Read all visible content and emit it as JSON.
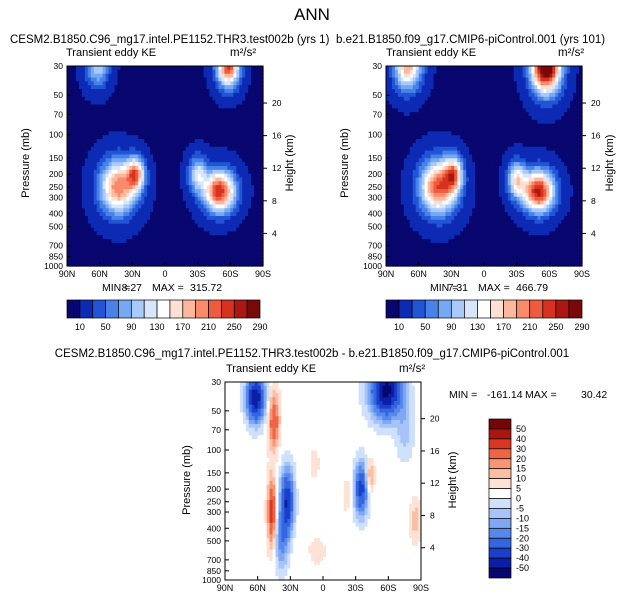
{
  "figure_title": "ANN",
  "colors": {
    "seq": [
      "#08076f",
      "#0c2ab3",
      "#2155d6",
      "#4782e8",
      "#76a8f3",
      "#a8c9fa",
      "#d6e6fd",
      "#ffffff",
      "#fde0d3",
      "#fcb79d",
      "#f98b69",
      "#ef5b3e",
      "#d6321f",
      "#ab1712",
      "#7a0809"
    ],
    "div": [
      "#08076f",
      "#0b1fa6",
      "#1a3fcc",
      "#3566e0",
      "#5788ed",
      "#7ea7f4",
      "#a6c4f9",
      "#cfe0fc",
      "#ffffff",
      "#fde2d5",
      "#fbbfa6",
      "#f89575",
      "#ee6445",
      "#d83821",
      "#ab1510",
      "#760505"
    ]
  },
  "chart_data": [
    {
      "type": "heatmap",
      "id": "p1",
      "title": "CESM2.B1850.C96_mg17.intel.PE1152.THR3.test002b (yrs 1)",
      "subtitle": "Transient eddy KE",
      "units": "m²/s²",
      "ylabel": "Pressure (mb)",
      "ylabel_right": "Height (km)",
      "x_ticks": [
        "90N",
        "60N",
        "30N",
        "0",
        "30S",
        "60S",
        "90S"
      ],
      "x_range": [
        90,
        -90
      ],
      "y_ticks": [
        30,
        50,
        70,
        100,
        150,
        200,
        250,
        300,
        400,
        500,
        700,
        850,
        1000
      ],
      "y_range": [
        1000,
        30
      ],
      "height_ticks": [
        4,
        8,
        12,
        16,
        20
      ],
      "min_label": "MIN =",
      "min_value": "8.27",
      "max_label": "MAX =",
      "max_value": "315.72",
      "colorbar": {
        "orientation": "horizontal",
        "levels": [
          10,
          30,
          50,
          70,
          90,
          110,
          130,
          150,
          170,
          190,
          210,
          230,
          250,
          270,
          290
        ],
        "labels": [
          "10",
          "50",
          "90",
          "130",
          "170",
          "210",
          "250",
          "290"
        ]
      },
      "blobs": [
        {
          "lat": 43,
          "p": 250,
          "amp": 200,
          "slat": 16,
          "sp": 0.45
        },
        {
          "lat": 27,
          "p": 200,
          "amp": 170,
          "slat": 8,
          "sp": 0.28
        },
        {
          "lat": -50,
          "p": 270,
          "amp": 240,
          "slat": 14,
          "sp": 0.35
        },
        {
          "lat": -30,
          "p": 200,
          "amp": 110,
          "slat": 8,
          "sp": 0.3
        },
        {
          "lat": -58,
          "p": 30,
          "amp": 230,
          "slat": 10,
          "sp": 0.35
        },
        {
          "lat": 62,
          "p": 30,
          "amp": 100,
          "slat": 10,
          "sp": 0.35
        }
      ]
    },
    {
      "type": "heatmap",
      "id": "p2",
      "title": "b.e21.B1850.f09_g17.CMIP6-piControl.001 (yrs 101)",
      "subtitle": "Transient eddy KE",
      "units": "m²/s²",
      "ylabel": "Pressure (mb)",
      "ylabel_right": "Height (km)",
      "x_ticks": [
        "90N",
        "60N",
        "30N",
        "0",
        "30S",
        "60S",
        "90S"
      ],
      "x_range": [
        90,
        -90
      ],
      "y_ticks": [
        30,
        50,
        70,
        100,
        150,
        200,
        250,
        300,
        400,
        500,
        700,
        850,
        1000
      ],
      "y_range": [
        1000,
        30
      ],
      "height_ticks": [
        4,
        8,
        12,
        16,
        20
      ],
      "min_label": "MIN =",
      "min_value": "7.31",
      "max_label": "MAX =",
      "max_value": "466.79",
      "colorbar": {
        "orientation": "horizontal",
        "levels": [
          10,
          30,
          50,
          70,
          90,
          110,
          130,
          150,
          170,
          190,
          210,
          230,
          250,
          270,
          290
        ],
        "labels": [
          "10",
          "50",
          "90",
          "130",
          "170",
          "210",
          "250",
          "290"
        ]
      },
      "blobs": [
        {
          "lat": 42,
          "p": 250,
          "amp": 220,
          "slat": 16,
          "sp": 0.45
        },
        {
          "lat": 28,
          "p": 200,
          "amp": 160,
          "slat": 8,
          "sp": 0.3
        },
        {
          "lat": -50,
          "p": 270,
          "amp": 250,
          "slat": 14,
          "sp": 0.35
        },
        {
          "lat": -30,
          "p": 220,
          "amp": 140,
          "slat": 8,
          "sp": 0.3
        },
        {
          "lat": -57,
          "p": 30,
          "amp": 320,
          "slat": 13,
          "sp": 0.45
        },
        {
          "lat": 70,
          "p": 30,
          "amp": 180,
          "slat": 12,
          "sp": 0.4
        }
      ]
    },
    {
      "type": "heatmap",
      "id": "p3",
      "title": "CESM2.B1850.C96_mg17.intel.PE1152.THR3.test002b - b.e21.B1850.f09_g17.CMIP6-piControl.001",
      "subtitle": "Transient eddy KE",
      "units": "m²/s²",
      "ylabel": "Pressure (mb)",
      "ylabel_right": "Height (km)",
      "x_ticks": [
        "90N",
        "60N",
        "30N",
        "0",
        "30S",
        "60S",
        "90S"
      ],
      "x_range": [
        90,
        -90
      ],
      "y_ticks": [
        30,
        50,
        70,
        100,
        150,
        200,
        250,
        300,
        400,
        500,
        700,
        850,
        1000
      ],
      "y_range": [
        1000,
        30
      ],
      "height_ticks": [
        4,
        8,
        12,
        16,
        20
      ],
      "min_label": "MIN =",
      "min_value": "-161.14",
      "max_label": "MAX =",
      "max_value": "30.42",
      "colorbar": {
        "orientation": "vertical",
        "levels": [
          -55,
          -45,
          -35,
          -25,
          -17.5,
          -12.5,
          -7.5,
          -2.5,
          2.5,
          7.5,
          12.5,
          17.5,
          25,
          35,
          45,
          55
        ],
        "labels": [
          "50",
          "40",
          "30",
          "20",
          "15",
          "10",
          "5",
          "0",
          "-5",
          "-10",
          "-15",
          "-20",
          "-30",
          "-40",
          "-50"
        ]
      },
      "blobs": [
        {
          "lat": 62,
          "p": 40,
          "amp": -55,
          "slat": 8,
          "sp": 0.4
        },
        {
          "lat": 45,
          "p": 60,
          "amp": 25,
          "slat": 5,
          "sp": 0.5
        },
        {
          "lat": 47,
          "p": 300,
          "amp": 30,
          "slat": 4,
          "sp": 0.6
        },
        {
          "lat": 33,
          "p": 250,
          "amp": -45,
          "slat": 6,
          "sp": 0.55
        },
        {
          "lat": 38,
          "p": 500,
          "amp": -20,
          "slat": 6,
          "sp": 0.5
        },
        {
          "lat": -35,
          "p": 200,
          "amp": -40,
          "slat": 6,
          "sp": 0.45
        },
        {
          "lat": -58,
          "p": 35,
          "amp": -60,
          "slat": 14,
          "sp": 0.45
        },
        {
          "lat": -43,
          "p": 160,
          "amp": 15,
          "slat": 4,
          "sp": 0.3
        },
        {
          "lat": -22,
          "p": 220,
          "amp": 5,
          "slat": 5,
          "sp": 0.35
        },
        {
          "lat": 8,
          "p": 130,
          "amp": 5,
          "slat": 5,
          "sp": 0.3
        },
        {
          "lat": -85,
          "p": 350,
          "amp": 10,
          "slat": 5,
          "sp": 0.4
        },
        {
          "lat": 5,
          "p": 600,
          "amp": 3,
          "slat": 18,
          "sp": 0.5
        },
        {
          "lat": -75,
          "p": 70,
          "amp": -10,
          "slat": 8,
          "sp": 0.5
        }
      ]
    }
  ]
}
